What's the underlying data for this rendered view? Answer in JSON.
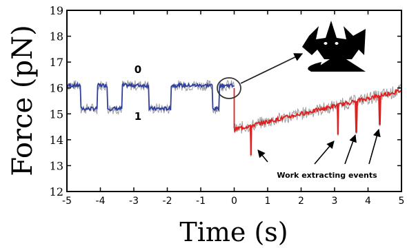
{
  "chart_data": {
    "type": "line",
    "xlabel": "Time (s)",
    "ylabel": "Force (pN)",
    "xlim": [
      -5,
      5
    ],
    "ylim": [
      12,
      19
    ],
    "x_ticks": [
      "-5",
      "-4",
      "-3",
      "-2",
      "-1",
      "0",
      "1",
      "2",
      "3",
      "4",
      "5"
    ],
    "y_ticks": [
      "12",
      "13",
      "14",
      "15",
      "16",
      "17",
      "18",
      "19"
    ],
    "grid": false,
    "state_labels": {
      "upper": "0",
      "lower": "1"
    },
    "annotation": "Work extracting events",
    "colors": {
      "blue_series": "#2f3fa0",
      "red_series": "#e01f1f",
      "raw_trace": "#9a9a9a",
      "demon": "#000000"
    },
    "icons": [
      "demon-icon",
      "zoom-circle"
    ],
    "series": [
      {
        "color": "blue",
        "segments": [
          {
            "x": [
              -5.0,
              -4.6
            ],
            "y": 16.1
          },
          {
            "x": [
              -4.6,
              -4.1
            ],
            "y": 15.2
          },
          {
            "x": [
              -4.1,
              -3.8
            ],
            "y": 16.1
          },
          {
            "x": [
              -3.8,
              -3.35
            ],
            "y": 15.2
          },
          {
            "x": [
              -3.35,
              -2.55
            ],
            "y": 16.1
          },
          {
            "x": [
              -2.55,
              -1.9
            ],
            "y": 15.2
          },
          {
            "x": [
              -1.9,
              -0.65
            ],
            "y": 16.1
          },
          {
            "x": [
              -0.65,
              -0.45
            ],
            "y": 15.2
          },
          {
            "x": [
              -0.45,
              0.0
            ],
            "y": 16.1
          }
        ]
      },
      {
        "color": "red",
        "drop": {
          "x": 0.0,
          "from": 16.0,
          "to": 14.4
        },
        "trend": {
          "x": [
            0.0,
            5.0
          ],
          "y": [
            14.4,
            15.9
          ]
        },
        "dips": [
          {
            "x": 0.5,
            "y": 13.4
          },
          {
            "x": 3.1,
            "y": 14.2
          },
          {
            "x": 3.65,
            "y": 14.3
          },
          {
            "x": 4.35,
            "y": 14.6
          }
        ]
      }
    ]
  }
}
